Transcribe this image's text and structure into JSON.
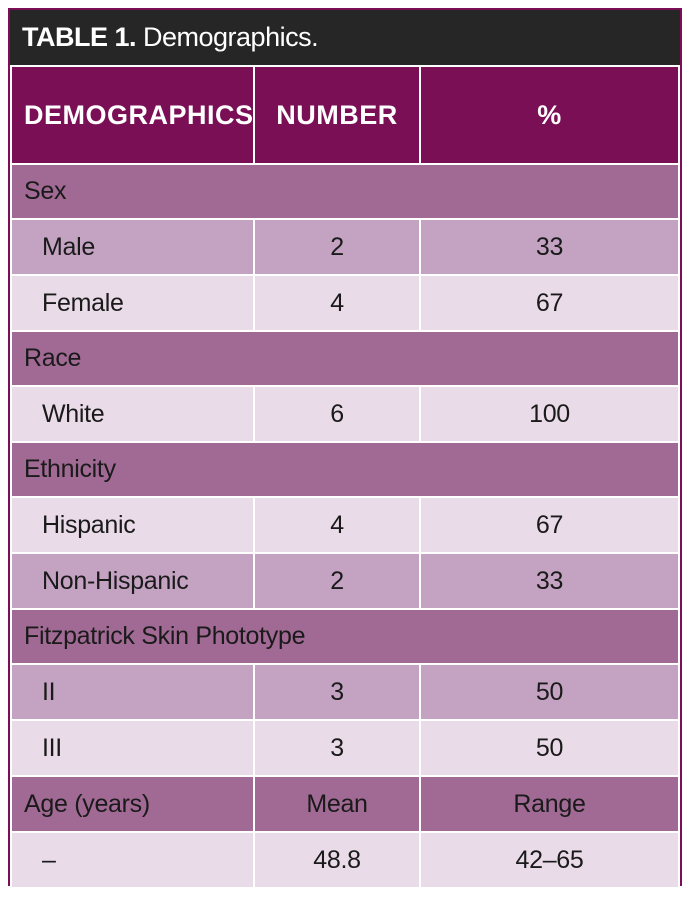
{
  "table": {
    "title_bold": "TABLE 1.",
    "title_rest": "Demographics.",
    "headers": [
      "DEMOGRAPHICS",
      "NUMBER",
      "%"
    ],
    "groups": [
      {
        "label": "Sex",
        "rows": [
          {
            "label": "Male",
            "number": "2",
            "percent": "33"
          },
          {
            "label": "Female",
            "number": "4",
            "percent": "67"
          }
        ]
      },
      {
        "label": "Race",
        "rows": [
          {
            "label": "White",
            "number": "6",
            "percent": "100"
          }
        ]
      },
      {
        "label": "Ethnicity",
        "rows": [
          {
            "label": "Hispanic",
            "number": "4",
            "percent": "67"
          },
          {
            "label": "Non-Hispanic",
            "number": "2",
            "percent": "33"
          }
        ]
      },
      {
        "label": "Fitzpatrick Skin Phototype",
        "rows": [
          {
            "label": "II",
            "number": "3",
            "percent": "50"
          },
          {
            "label": "III",
            "number": "3",
            "percent": "50"
          }
        ]
      }
    ],
    "age": {
      "label": "Age (years)",
      "col2": "Mean",
      "col3": "Range",
      "row": {
        "label": "–",
        "mean": "48.8",
        "range": "42–65"
      }
    }
  },
  "colors": {
    "header_purple": "#7a0f55",
    "group_purple": "#a16a94",
    "row_dark": "#c4a3c2",
    "row_light": "#e9dbe8",
    "title_bar": "#262626"
  }
}
